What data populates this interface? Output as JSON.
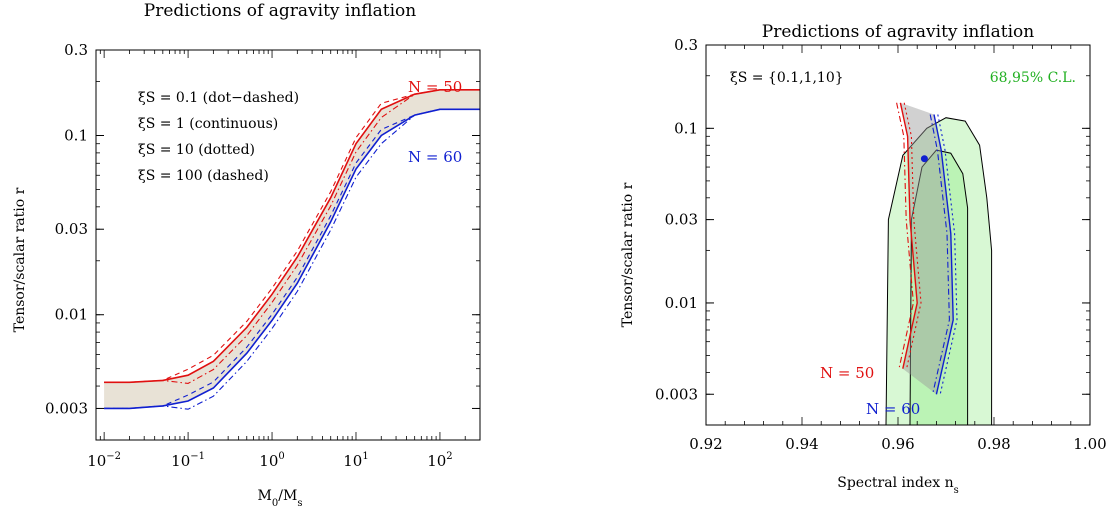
{
  "chart_data": [
    {
      "type": "line",
      "title": "Predictions of agravity inflation",
      "xlabel": "M0/Ms",
      "ylabel": "Tensor/scalar ratio r",
      "x_scale": "log",
      "y_scale": "log",
      "xlim": [
        0.008,
        300
      ],
      "ylim": [
        0.002,
        0.3
      ],
      "x_ticks": [
        {
          "value": 0.01,
          "base": "10",
          "exp": "−2"
        },
        {
          "value": 0.1,
          "base": "10",
          "exp": "−1"
        },
        {
          "value": 1,
          "base": "10",
          "exp": "0"
        },
        {
          "value": 10,
          "base": "10",
          "exp": "1"
        },
        {
          "value": 100,
          "base": "10",
          "exp": "2"
        }
      ],
      "y_ticks": [
        {
          "value": 0.003,
          "label": "0.003"
        },
        {
          "value": 0.01,
          "label": "0.01"
        },
        {
          "value": 0.03,
          "label": "0.03"
        },
        {
          "value": 0.1,
          "label": "0.1"
        },
        {
          "value": 0.3,
          "label": "0.3"
        }
      ],
      "legend_lines": [
        {
          "text": "ξS = 0.1 (dot−dashed)"
        },
        {
          "text": "ξS = 1 (continuous)"
        },
        {
          "text": "ξS = 10 (dotted)"
        },
        {
          "text": "ξS = 100 (dashed)"
        }
      ],
      "series": [
        {
          "name": "N = 50",
          "color": "#e01010",
          "x": [
            0.01,
            0.02,
            0.05,
            0.1,
            0.2,
            0.5,
            1,
            2,
            5,
            10,
            20,
            50,
            100,
            300
          ],
          "y": [
            0.0042,
            0.0042,
            0.0043,
            0.0046,
            0.0055,
            0.0085,
            0.013,
            0.021,
            0.045,
            0.09,
            0.14,
            0.17,
            0.18,
            0.18
          ]
        },
        {
          "name": "N = 60",
          "color": "#1020d0",
          "x": [
            0.01,
            0.02,
            0.05,
            0.1,
            0.2,
            0.5,
            1,
            2,
            5,
            10,
            20,
            50,
            100,
            300
          ],
          "y": [
            0.003,
            0.003,
            0.0031,
            0.0033,
            0.0039,
            0.0061,
            0.0093,
            0.015,
            0.033,
            0.065,
            0.1,
            0.13,
            0.14,
            0.14
          ]
        }
      ]
    },
    {
      "type": "scatter",
      "title": "Predictions of agravity inflation",
      "xlabel": "Spectral index ns",
      "ylabel": "Tensor/scalar ratio r",
      "y_scale": "log",
      "xlim": [
        0.92,
        1.0
      ],
      "ylim": [
        0.002,
        0.3
      ],
      "x_ticks": [
        {
          "value": 0.92,
          "label": "0.92"
        },
        {
          "value": 0.94,
          "label": "0.94"
        },
        {
          "value": 0.96,
          "label": "0.96"
        },
        {
          "value": 0.98,
          "label": "0.98"
        },
        {
          "value": 1.0,
          "label": "1.00"
        }
      ],
      "y_ticks": [
        {
          "value": 0.003,
          "label": "0.003"
        },
        {
          "value": 0.01,
          "label": "0.01"
        },
        {
          "value": 0.03,
          "label": "0.03"
        },
        {
          "value": 0.1,
          "label": "0.1"
        },
        {
          "value": 0.3,
          "label": "0.3"
        }
      ],
      "annotations": {
        "xi": "ξS = {0.1,1,10}",
        "cl": "68,95% C.L."
      },
      "contours": {
        "color_fill": "#a8f0a0",
        "c95": [
          [
            0.9575,
            0.002
          ],
          [
            0.958,
            0.03
          ],
          [
            0.961,
            0.07
          ],
          [
            0.966,
            0.1
          ],
          [
            0.97,
            0.115
          ],
          [
            0.974,
            0.11
          ],
          [
            0.977,
            0.08
          ],
          [
            0.9785,
            0.04
          ],
          [
            0.9795,
            0.02
          ],
          [
            0.9795,
            0.002
          ]
        ],
        "c68": [
          [
            0.9625,
            0.002
          ],
          [
            0.9628,
            0.03
          ],
          [
            0.965,
            0.06
          ],
          [
            0.968,
            0.075
          ],
          [
            0.971,
            0.072
          ],
          [
            0.9735,
            0.055
          ],
          [
            0.9745,
            0.035
          ],
          [
            0.9745,
            0.002
          ]
        ]
      },
      "series": [
        {
          "name": "N = 50",
          "color": "#e01010",
          "ns": [
            0.9605,
            0.962,
            0.9625,
            0.964,
            0.961
          ],
          "r": [
            0.14,
            0.09,
            0.03,
            0.01,
            0.0042
          ]
        },
        {
          "name": "N = 60",
          "color": "#1020d0",
          "ns": [
            0.9675,
            0.969,
            0.971,
            0.9715,
            0.968
          ],
          "r": [
            0.12,
            0.075,
            0.025,
            0.008,
            0.003
          ]
        }
      ],
      "point": {
        "ns": 0.9655,
        "r": 0.067
      }
    }
  ]
}
